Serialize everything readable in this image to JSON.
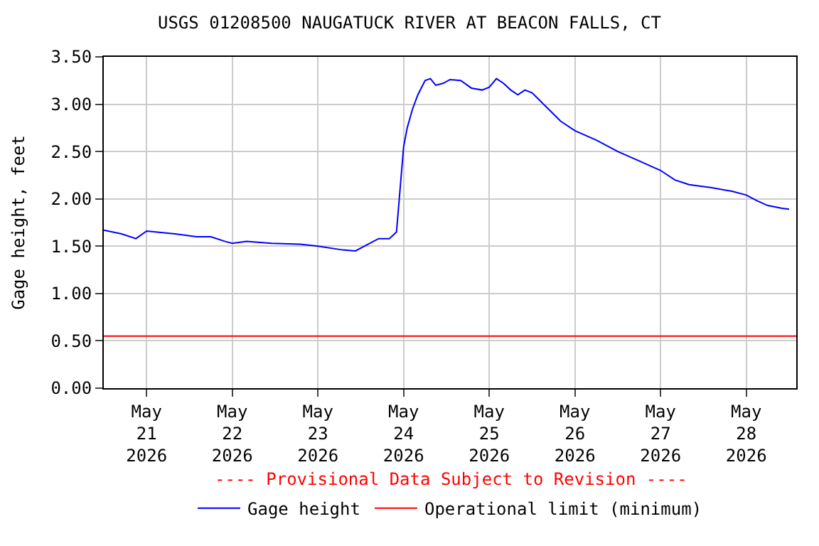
{
  "chart_data": {
    "type": "line",
    "title": "USGS 01208500 NAUGATUCK RIVER AT BEACON FALLS, CT",
    "ylabel": "Gage height, feet",
    "x": [
      "2026-05-20T12:00",
      "2026-05-20T17:00",
      "2026-05-20T21:00",
      "2026-05-21T00:00",
      "2026-05-21T08:00",
      "2026-05-21T14:00",
      "2026-05-21T18:00",
      "2026-05-21T22:00",
      "2026-05-22T00:00",
      "2026-05-22T04:00",
      "2026-05-22T11:00",
      "2026-05-22T19:00",
      "2026-05-23T00:00",
      "2026-05-23T07:00",
      "2026-05-23T10:30",
      "2026-05-23T14:00",
      "2026-05-23T17:00",
      "2026-05-23T20:00",
      "2026-05-23T22:00",
      "2026-05-23T23:00",
      "2026-05-24T00:00",
      "2026-05-24T01:00",
      "2026-05-24T02:30",
      "2026-05-24T04:00",
      "2026-05-24T06:00",
      "2026-05-24T07:30",
      "2026-05-24T09:00",
      "2026-05-24T11:00",
      "2026-05-24T13:00",
      "2026-05-24T16:00",
      "2026-05-24T19:00",
      "2026-05-24T22:00",
      "2026-05-25T00:00",
      "2026-05-25T02:00",
      "2026-05-25T04:00",
      "2026-05-25T06:00",
      "2026-05-25T08:00",
      "2026-05-25T10:00",
      "2026-05-25T12:00",
      "2026-05-25T16:00",
      "2026-05-25T20:00",
      "2026-05-26T00:00",
      "2026-05-26T06:00",
      "2026-05-26T12:00",
      "2026-05-26T18:00",
      "2026-05-27T00:00",
      "2026-05-27T04:00",
      "2026-05-27T08:00",
      "2026-05-27T14:00",
      "2026-05-27T20:00",
      "2026-05-28T00:00",
      "2026-05-28T03:00",
      "2026-05-28T06:00",
      "2026-05-28T10:00",
      "2026-05-28T12:00"
    ],
    "series": [
      {
        "name": "Gage height",
        "color": "#0000ff",
        "values": [
          1.67,
          1.63,
          1.58,
          1.66,
          1.63,
          1.6,
          1.6,
          1.55,
          1.53,
          1.55,
          1.53,
          1.52,
          1.5,
          1.46,
          1.45,
          1.52,
          1.58,
          1.58,
          1.65,
          2.1,
          2.55,
          2.75,
          2.95,
          3.1,
          3.25,
          3.27,
          3.2,
          3.22,
          3.26,
          3.25,
          3.17,
          3.15,
          3.18,
          3.27,
          3.22,
          3.15,
          3.1,
          3.15,
          3.12,
          2.97,
          2.82,
          2.72,
          2.62,
          2.5,
          2.4,
          2.3,
          2.2,
          2.15,
          2.12,
          2.08,
          2.04,
          1.98,
          1.93,
          1.9,
          1.89
        ]
      }
    ],
    "xlim": [
      "2026-05-20T12:00",
      "2026-05-28T14:00"
    ],
    "xticks": [
      {
        "value": "2026-05-21",
        "label": "May\n21\n2026"
      },
      {
        "value": "2026-05-22",
        "label": "May\n22\n2026"
      },
      {
        "value": "2026-05-23",
        "label": "May\n23\n2026"
      },
      {
        "value": "2026-05-24",
        "label": "May\n24\n2026"
      },
      {
        "value": "2026-05-25",
        "label": "May\n25\n2026"
      },
      {
        "value": "2026-05-26",
        "label": "May\n26\n2026"
      },
      {
        "value": "2026-05-27",
        "label": "May\n27\n2026"
      },
      {
        "value": "2026-05-28",
        "label": "May\n28\n2026"
      }
    ],
    "ylim": [
      0,
      3.5
    ],
    "yticks": [
      {
        "value": 0,
        "label": "0.00"
      },
      {
        "value": 0.5,
        "label": "0.50"
      },
      {
        "value": 1,
        "label": "1.00"
      },
      {
        "value": 1.5,
        "label": "1.50"
      },
      {
        "value": 2,
        "label": "2.00"
      },
      {
        "value": 2.5,
        "label": "2.50"
      },
      {
        "value": 3,
        "label": "3.00"
      },
      {
        "value": 3.5,
        "label": "3.50"
      }
    ],
    "ref_lines": [
      {
        "axis": "y",
        "value": 0.55,
        "label": "Operational limit (minimum)",
        "color": "#ff0000"
      }
    ],
    "annotations": [
      "---- Provisional Data Subject to Revision ----"
    ],
    "grid": true,
    "legend": "bottom",
    "marker": "none",
    "line_style": "solid"
  }
}
